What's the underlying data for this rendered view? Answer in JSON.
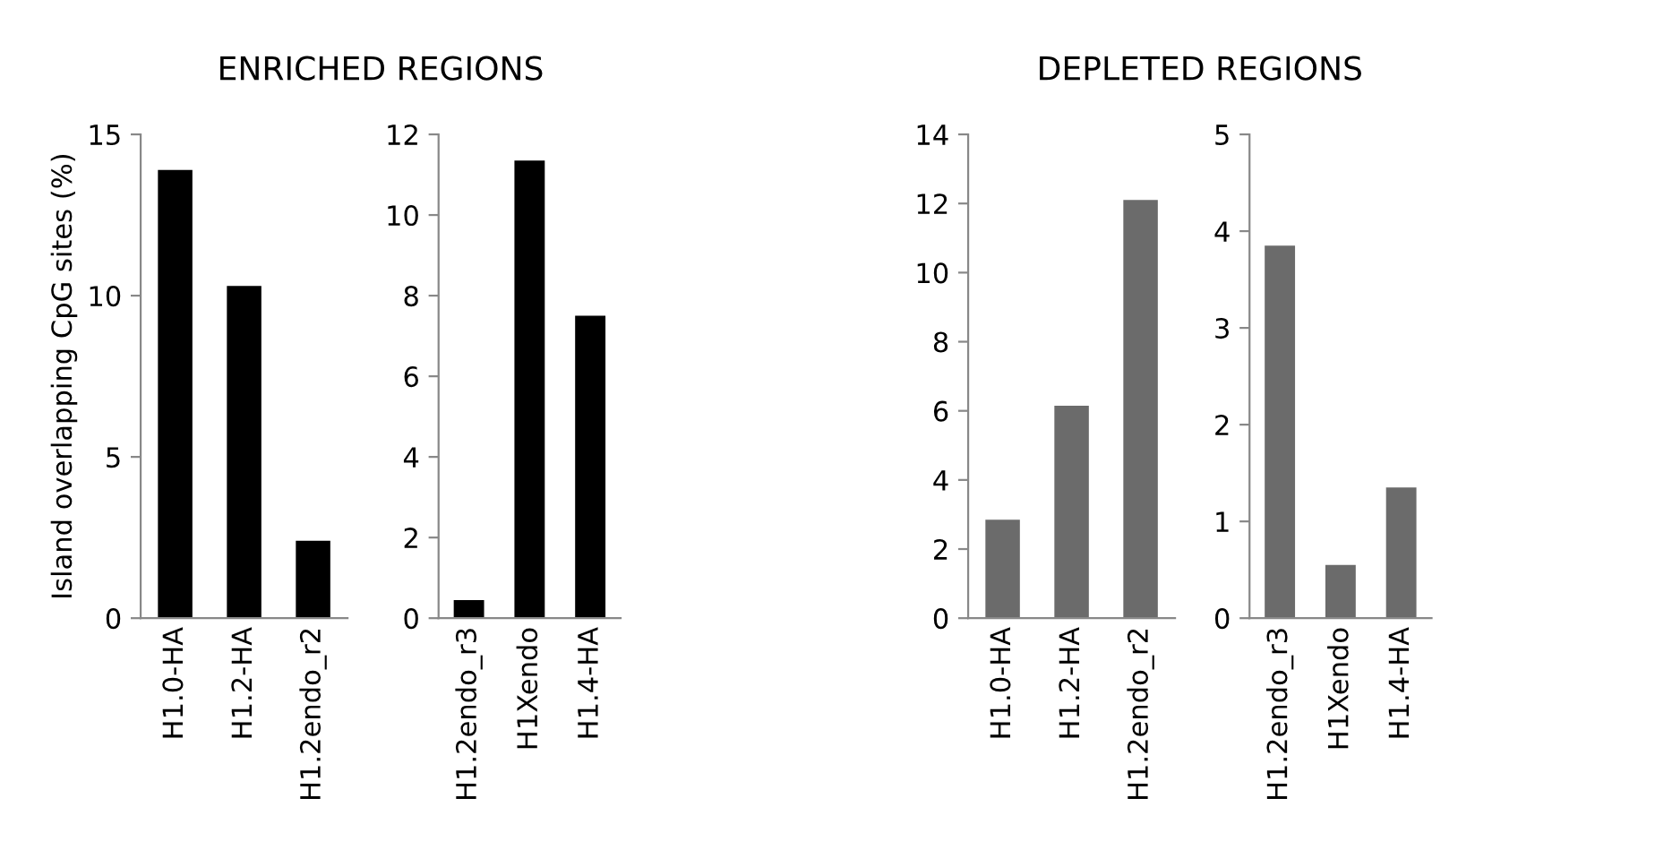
{
  "chart_data": [
    {
      "type": "bar",
      "title": "ENRICHED REGIONS",
      "ylabel": "Island overlapping CpG sites (%)",
      "categories": [
        "H1.0-HA",
        "H1.2-HA",
        "H1.2endo_r2"
      ],
      "values": [
        13.9,
        10.3,
        2.4
      ],
      "color": "#000000",
      "ylim": [
        0,
        15
      ],
      "yticks": [
        0,
        5,
        10,
        15
      ],
      "grid": false,
      "legend": false
    },
    {
      "type": "bar",
      "categories": [
        "H1.2endo_r3",
        "H1Xendo",
        "H1.4-HA"
      ],
      "values": [
        0.45,
        11.35,
        7.5
      ],
      "color": "#000000",
      "ylim": [
        0,
        12
      ],
      "yticks": [
        0,
        2,
        4,
        6,
        8,
        10,
        12
      ],
      "grid": false,
      "legend": false
    },
    {
      "type": "bar",
      "title": "DEPLETED REGIONS",
      "categories": [
        "H1.0-HA",
        "H1.2-HA",
        "H1.2endo_r2"
      ],
      "values": [
        2.85,
        6.15,
        12.1
      ],
      "color": "#6b6b6b",
      "ylim": [
        0,
        14
      ],
      "yticks": [
        0,
        2,
        4,
        6,
        8,
        10,
        12,
        14
      ],
      "grid": false,
      "legend": false
    },
    {
      "type": "bar",
      "categories": [
        "H1.2endo_r3",
        "H1Xendo",
        "H1.4-HA"
      ],
      "values": [
        3.85,
        0.55,
        1.35
      ],
      "color": "#6b6b6b",
      "ylim": [
        0,
        5
      ],
      "yticks": [
        0,
        1,
        2,
        3,
        4,
        5
      ],
      "grid": false,
      "legend": false
    }
  ]
}
